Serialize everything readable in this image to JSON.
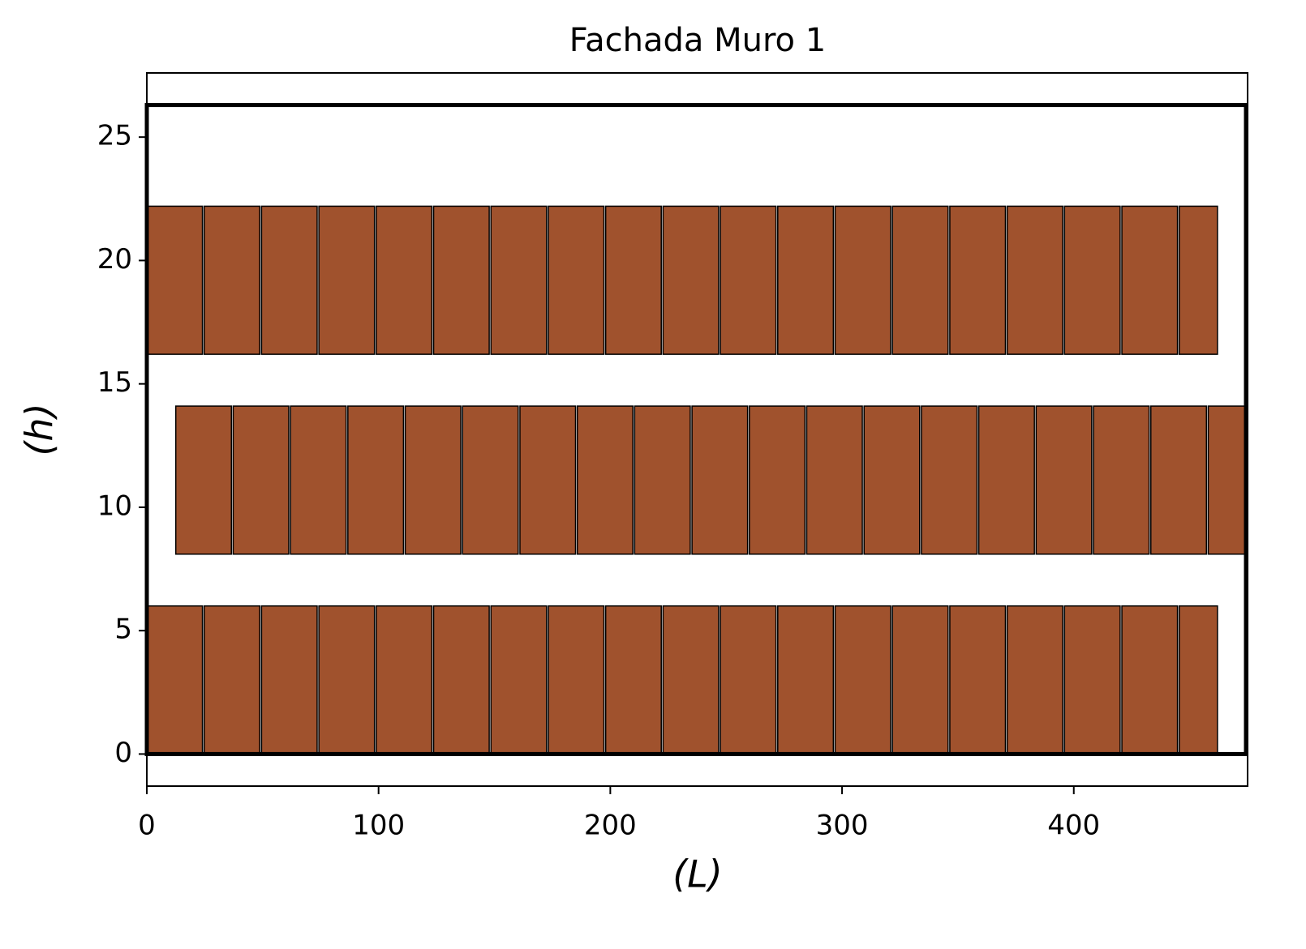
{
  "chart_data": {
    "type": "rectangle",
    "title": "Fachada Muro 1",
    "xlabel": "(L)",
    "ylabel": "(h)",
    "xlim": [
      0,
      475
    ],
    "ylim": [
      -1.3,
      27.6
    ],
    "xticks": [
      0,
      100,
      200,
      300,
      400
    ],
    "yticks": [
      0,
      5,
      10,
      15,
      20,
      25
    ],
    "color": "#a0522d",
    "wall": {
      "x": 0,
      "y": 0,
      "width": 474.3,
      "height": 26.3
    },
    "series": [
      {
        "y": 0,
        "height": 6,
        "x": [
          0,
          24.75,
          49.5,
          74.25,
          99,
          123.75,
          148.5,
          173.25,
          198,
          222.75,
          247.5,
          272.25,
          297,
          321.75,
          346.5,
          371.25,
          396,
          420.75,
          445.5
        ],
        "widths": [
          24,
          24,
          24,
          24,
          24,
          24,
          24,
          24,
          24,
          24,
          24,
          24,
          24,
          24,
          24,
          24,
          24,
          24,
          16.5
        ]
      },
      {
        "y": 8.1,
        "height": 6,
        "x": [
          12.5,
          37.25,
          62,
          86.75,
          111.5,
          136.25,
          161,
          185.75,
          210.5,
          235.25,
          260,
          284.75,
          309.5,
          334.25,
          359,
          383.75,
          408.5,
          433.25,
          458
        ],
        "widths": [
          24,
          24,
          24,
          24,
          24,
          24,
          24,
          24,
          24,
          24,
          24,
          24,
          24,
          24,
          24,
          24,
          24,
          24,
          16.3
        ]
      },
      {
        "y": 16.2,
        "height": 6,
        "x": [
          0,
          24.75,
          49.5,
          74.25,
          99,
          123.75,
          148.5,
          173.25,
          198,
          222.75,
          247.5,
          272.25,
          297,
          321.75,
          346.5,
          371.25,
          396,
          420.75,
          445.5
        ],
        "widths": [
          24,
          24,
          24,
          24,
          24,
          24,
          24,
          24,
          24,
          24,
          24,
          24,
          24,
          24,
          24,
          24,
          24,
          24,
          16.5
        ]
      }
    ]
  }
}
